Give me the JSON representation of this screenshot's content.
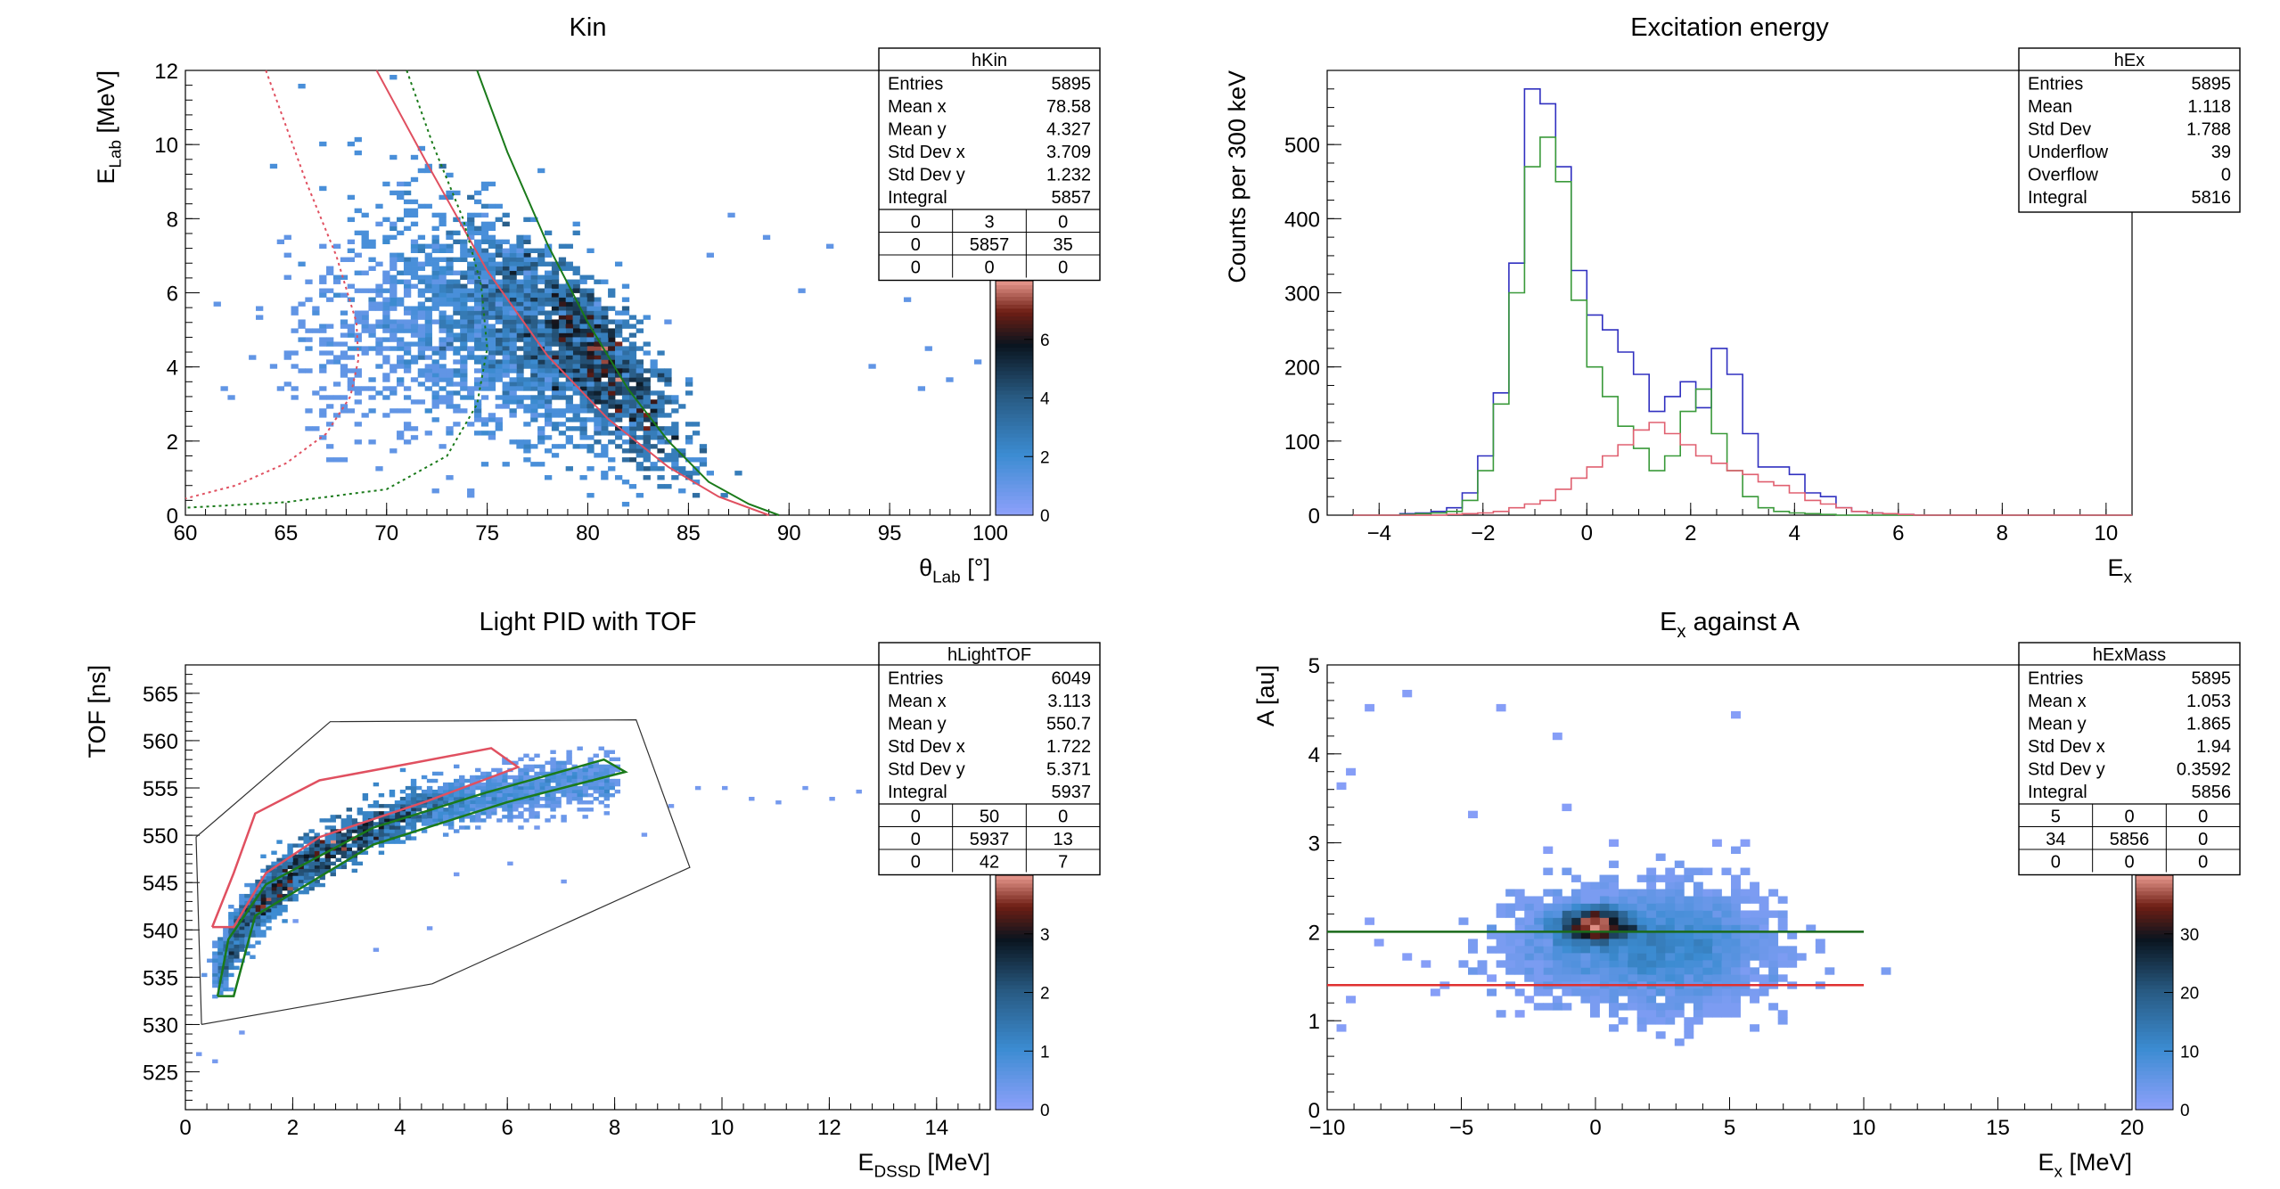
{
  "chart_data": [
    {
      "type": "heatmap",
      "title": "Kin",
      "xlabel": "θ_Lab [°]",
      "ylabel": "E_Lab [MeV]",
      "xlim": [
        60,
        100
      ],
      "ylim": [
        0,
        12
      ],
      "xticks": [
        60,
        65,
        70,
        75,
        80,
        85,
        90,
        95,
        100
      ],
      "yticks": [
        0,
        2,
        4,
        6,
        8,
        10,
        12
      ],
      "zlim": [
        0,
        8
      ],
      "zticks": [
        0,
        2,
        4,
        6
      ],
      "stats": {
        "name": "hKin",
        "rows": [
          [
            "Entries",
            "5895"
          ],
          [
            "Mean x",
            "78.58"
          ],
          [
            "Mean y",
            "4.327"
          ],
          [
            "Std Dev x",
            "3.709"
          ],
          [
            "Std Dev y",
            "1.232"
          ],
          [
            "Integral",
            "5857"
          ]
        ],
        "grid": [
          [
            "0",
            "3",
            "0"
          ],
          [
            "0",
            "5857",
            "35"
          ],
          [
            "0",
            "0",
            "0"
          ]
        ]
      },
      "blobs": [
        {
          "cx": 80.5,
          "cy": 4.2,
          "sx": 2.2,
          "sy": 0.9,
          "n": 900,
          "tilt": -0.55,
          "w": 1.0
        },
        {
          "cx": 76.5,
          "cy": 5.0,
          "sx": 3.2,
          "sy": 1.3,
          "n": 1400,
          "tilt": -0.35,
          "w": 0.45
        },
        {
          "cx": 72.0,
          "cy": 4.6,
          "sx": 3.5,
          "sy": 1.3,
          "n": 700,
          "tilt": 0.0,
          "w": 0.2
        }
      ],
      "sparse": [
        [
          97,
          4.5
        ],
        [
          98,
          3.6
        ],
        [
          99.5,
          4.1
        ],
        [
          96,
          5.8
        ],
        [
          92,
          7.2
        ],
        [
          89,
          7.5
        ],
        [
          87,
          8.1
        ],
        [
          94,
          4.0
        ],
        [
          90.5,
          6.0
        ],
        [
          84,
          5.2
        ],
        [
          96.5,
          3.4
        ],
        [
          86,
          7.0
        ]
      ],
      "curves": [
        {
          "name": "red-solid",
          "color": "#e05060",
          "style": "solid",
          "points": [
            [
              69.5,
              12
            ],
            [
              72,
              9.5
            ],
            [
              75,
              6.6
            ],
            [
              78,
              4.3
            ],
            [
              81,
              2.6
            ],
            [
              84,
              1.3
            ],
            [
              86.5,
              0.5
            ],
            [
              89,
              0.0
            ]
          ]
        },
        {
          "name": "green-solid",
          "color": "#1a7a1a",
          "style": "solid",
          "points": [
            [
              74.5,
              12
            ],
            [
              76,
              9.8
            ],
            [
              78,
              7.3
            ],
            [
              80,
              5.2
            ],
            [
              82,
              3.4
            ],
            [
              84,
              2.0
            ],
            [
              86,
              0.9
            ],
            [
              88,
              0.3
            ],
            [
              89.5,
              0.0
            ]
          ]
        },
        {
          "name": "red-dotted",
          "color": "#e05060",
          "style": "dotted",
          "points": [
            [
              64,
              12
            ],
            [
              66,
              9
            ],
            [
              67.5,
              7
            ],
            [
              68.5,
              5.2
            ],
            [
              68.6,
              4.2
            ],
            [
              68.2,
              3.2
            ],
            [
              67,
              2.2
            ],
            [
              65,
              1.4
            ],
            [
              62.5,
              0.8
            ],
            [
              60,
              0.45
            ]
          ]
        },
        {
          "name": "green-dotted",
          "color": "#1a7a1a",
          "style": "dotted",
          "points": [
            [
              71,
              12
            ],
            [
              72.3,
              10
            ],
            [
              73.8,
              8
            ],
            [
              74.7,
              6.2
            ],
            [
              75,
              4.5
            ],
            [
              74.5,
              3
            ],
            [
              73,
              1.6
            ],
            [
              70,
              0.7
            ],
            [
              65,
              0.35
            ],
            [
              60,
              0.2
            ]
          ]
        }
      ]
    },
    {
      "type": "line",
      "title": "Excitation energy",
      "xlabel": "E_x",
      "ylabel": "Counts per 300 keV",
      "xlim": [
        -5,
        10.5
      ],
      "ylim": [
        0,
        600
      ],
      "xticks": [
        -4,
        -2,
        0,
        2,
        4,
        6,
        8,
        10
      ],
      "yticks": [
        0,
        100,
        200,
        300,
        400,
        500
      ],
      "binwidth": 0.3,
      "x0": -4.5,
      "stats": {
        "name": "hEx",
        "rows": [
          [
            "Entries",
            "5895"
          ],
          [
            "Mean",
            "1.118"
          ],
          [
            "Std Dev",
            "1.788"
          ],
          [
            "Underflow",
            "39"
          ],
          [
            "Overflow",
            "0"
          ],
          [
            "Integral",
            "5816"
          ]
        ]
      },
      "series": [
        {
          "color": "#3030c0",
          "values": [
            0,
            0,
            0,
            2,
            3,
            5,
            10,
            30,
            80,
            165,
            340,
            575,
            555,
            470,
            330,
            270,
            250,
            220,
            190,
            140,
            160,
            180,
            145,
            225,
            190,
            110,
            65,
            65,
            55,
            30,
            25,
            10,
            5,
            3,
            2,
            1,
            0,
            0,
            0,
            0,
            0,
            0,
            0,
            0,
            0,
            0,
            0,
            0,
            0,
            0,
            0,
            0
          ]
        },
        {
          "color": "#3a9a3a",
          "values": [
            0,
            0,
            0,
            1,
            2,
            3,
            5,
            20,
            60,
            150,
            300,
            470,
            510,
            450,
            290,
            200,
            160,
            120,
            90,
            60,
            80,
            140,
            170,
            110,
            60,
            25,
            10,
            5,
            3,
            2,
            1,
            0,
            0,
            0,
            0,
            0,
            0,
            0,
            0,
            0,
            0,
            0,
            0,
            0,
            0,
            0,
            0,
            0,
            0,
            0,
            0,
            0
          ]
        },
        {
          "color": "#e06070",
          "values": [
            0,
            0,
            0,
            0,
            0,
            0,
            1,
            2,
            3,
            5,
            10,
            15,
            20,
            35,
            50,
            65,
            80,
            95,
            115,
            125,
            110,
            95,
            80,
            70,
            60,
            55,
            45,
            40,
            30,
            20,
            15,
            10,
            5,
            3,
            2,
            1,
            0,
            0,
            0,
            0,
            0,
            0,
            0,
            0,
            0,
            0,
            0,
            0,
            0,
            0,
            0,
            0
          ]
        }
      ]
    },
    {
      "type": "heatmap",
      "title": "Light PID with TOF",
      "xlabel": "E_DSSD [MeV]",
      "ylabel": "TOF [ns]",
      "xlim": [
        0,
        15
      ],
      "ylim": [
        521,
        568
      ],
      "xticks": [
        0,
        2,
        4,
        6,
        8,
        10,
        12,
        14
      ],
      "yticks": [
        525,
        530,
        535,
        540,
        545,
        550,
        555,
        560,
        565
      ],
      "zlim": [
        0,
        4
      ],
      "zticks": [
        0,
        1,
        2,
        3
      ],
      "stats": {
        "name": "hLightTOF",
        "rows": [
          [
            "Entries",
            "6049"
          ],
          [
            "Mean x",
            "3.113"
          ],
          [
            "Mean y",
            "550.7"
          ],
          [
            "Std Dev x",
            "1.722"
          ],
          [
            "Std Dev y",
            "5.371"
          ],
          [
            "Integral",
            "5937"
          ]
        ],
        "grid": [
          [
            "0",
            "50",
            "0"
          ],
          [
            "0",
            "5937",
            "13"
          ],
          [
            "0",
            "42",
            "7"
          ]
        ]
      },
      "band": {
        "points": [
          [
            0.6,
            535
          ],
          [
            1,
            540
          ],
          [
            1.5,
            543.5
          ],
          [
            2,
            546
          ],
          [
            3,
            549.5
          ],
          [
            4,
            552
          ],
          [
            5,
            553.5
          ],
          [
            6,
            554.5
          ],
          [
            7,
            555.5
          ],
          [
            8,
            556
          ]
        ],
        "width": 1.3,
        "n": 2600
      },
      "sparse": [
        [
          9,
          553
        ],
        [
          10,
          555
        ],
        [
          11,
          553.5
        ],
        [
          12,
          554
        ],
        [
          12.5,
          554.5
        ],
        [
          13,
          553
        ],
        [
          14,
          554
        ],
        [
          9.5,
          555
        ],
        [
          8.5,
          550
        ],
        [
          7,
          545
        ],
        [
          6,
          547
        ],
        [
          5,
          546
        ],
        [
          4.5,
          540
        ],
        [
          3.5,
          538
        ],
        [
          2,
          541
        ],
        [
          6.5,
          551
        ],
        [
          10.5,
          554
        ],
        [
          11.5,
          555
        ],
        [
          0.3,
          527
        ],
        [
          1.0,
          529
        ],
        [
          0.6,
          526
        ]
      ],
      "gates": [
        {
          "color": "#303030",
          "width": 1.2,
          "points": [
            [
              0.3,
              530
            ],
            [
              0.2,
              549.8
            ],
            [
              2.7,
              562
            ],
            [
              8.4,
              562.2
            ],
            [
              9.4,
              546.6
            ],
            [
              4.6,
              534.3
            ],
            [
              0.3,
              530
            ]
          ]
        },
        {
          "color": "#e05060",
          "width": 2.5,
          "points": [
            [
              0.5,
              540.3
            ],
            [
              0.9,
              546
            ],
            [
              1.3,
              552.3
            ],
            [
              2.5,
              555.8
            ],
            [
              4.3,
              557.7
            ],
            [
              5.7,
              559.2
            ],
            [
              6.2,
              557.2
            ],
            [
              4.5,
              553.6
            ],
            [
              2.5,
              549.8
            ],
            [
              1.5,
              546
            ],
            [
              0.9,
              540.3
            ],
            [
              0.5,
              540.3
            ]
          ]
        },
        {
          "color": "#1a7a1a",
          "width": 2.5,
          "points": [
            [
              0.6,
              533
            ],
            [
              0.8,
              539
            ],
            [
              1.5,
              544.8
            ],
            [
              3.5,
              550.8
            ],
            [
              5.6,
              554.5
            ],
            [
              7.8,
              558
            ],
            [
              8.2,
              556.7
            ],
            [
              6.0,
              553.5
            ],
            [
              3.5,
              549.0
            ],
            [
              2.0,
              543.9
            ],
            [
              1.3,
              541.5
            ],
            [
              0.9,
              533.0
            ],
            [
              0.6,
              533
            ]
          ]
        }
      ]
    },
    {
      "type": "heatmap",
      "title": "E_x against A",
      "xlabel": "E_x [MeV]",
      "ylabel": "A [au]",
      "xlim": [
        -10,
        20
      ],
      "ylim": [
        0,
        5
      ],
      "xticks": [
        -10,
        -5,
        0,
        5,
        10,
        15,
        20
      ],
      "yticks": [
        0,
        1,
        2,
        3,
        4,
        5
      ],
      "zlim": [
        0,
        40
      ],
      "zticks": [
        0,
        10,
        20,
        30
      ],
      "stats": {
        "name": "hExMass",
        "rows": [
          [
            "Entries",
            "5895"
          ],
          [
            "Mean x",
            "1.053"
          ],
          [
            "Mean y",
            "1.865"
          ],
          [
            "Std Dev x",
            "1.94"
          ],
          [
            "Std Dev y",
            "0.3592"
          ],
          [
            "Integral",
            "5856"
          ]
        ],
        "grid": [
          [
            "5",
            "0",
            "0"
          ],
          [
            "34",
            "5856",
            "0"
          ],
          [
            "0",
            "0",
            "0"
          ]
        ]
      },
      "blobs": [
        {
          "cx": 0.0,
          "cy": 2.07,
          "sx": 0.7,
          "sy": 0.1,
          "n": 1100,
          "tilt": 0,
          "w": 1.0
        },
        {
          "cx": 1.5,
          "cy": 1.85,
          "sx": 2.2,
          "sy": 0.28,
          "n": 2400,
          "tilt": 0,
          "w": 0.35
        },
        {
          "cx": 3.5,
          "cy": 1.8,
          "sx": 1.4,
          "sy": 0.35,
          "n": 900,
          "tilt": 0,
          "w": 0.3
        }
      ],
      "sparse": [
        [
          -8.5,
          4.5
        ],
        [
          -7.2,
          4.7
        ],
        [
          -3.5,
          4.5
        ],
        [
          -1.5,
          4.2
        ],
        [
          5.2,
          4.4
        ],
        [
          -9,
          3.8
        ],
        [
          -9.5,
          3.6
        ],
        [
          -4.5,
          3.3
        ],
        [
          -8,
          1.9
        ],
        [
          -7,
          1.7
        ],
        [
          -9.2,
          1.2
        ],
        [
          -6,
          1.3
        ],
        [
          -4,
          1.5
        ],
        [
          -9.5,
          0.9
        ],
        [
          -2.5,
          1.2
        ],
        [
          -1,
          3.4
        ],
        [
          0.5,
          3.0
        ],
        [
          -1.8,
          2.9
        ],
        [
          4.5,
          3.0
        ],
        [
          5.5,
          3.0
        ],
        [
          -5.5,
          1.4
        ],
        [
          -8.3,
          2.1
        ],
        [
          -6.5,
          1.6
        ],
        [
          -3,
          1.1
        ]
      ],
      "hlines": [
        {
          "y": 2.0,
          "x0": -10,
          "x1": 10,
          "color": "#1a6a1a"
        },
        {
          "y": 1.4,
          "x0": -10,
          "x1": 10,
          "color": "#e03030"
        }
      ]
    }
  ]
}
